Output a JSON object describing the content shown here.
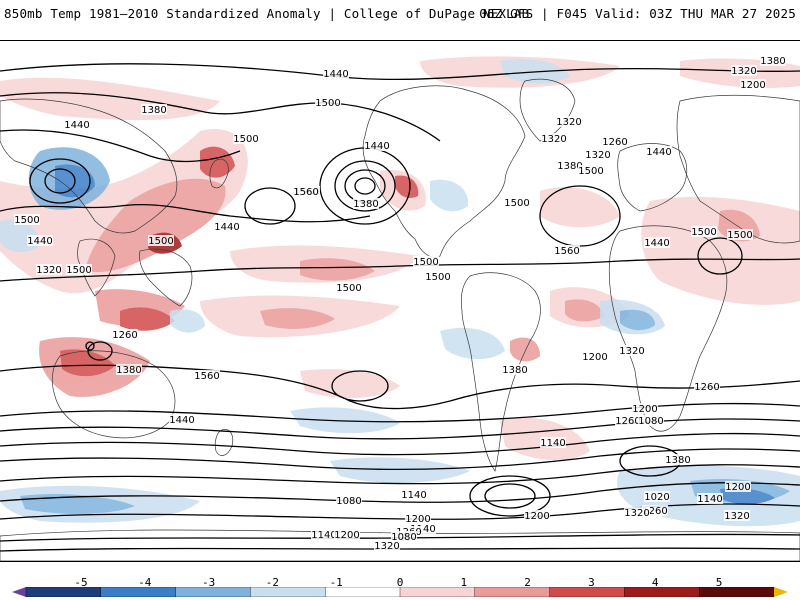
{
  "header": {
    "title_left": "850mb Temp 1981–2010 Standardized Anomaly | College of DuPage NEXLAB",
    "title_right": "06Z GFS | F045 Valid: 03Z THU MAR 27 2025"
  },
  "colorbar": {
    "ticks": [
      "-5",
      "-4",
      "-3",
      "-2",
      "-1",
      "0",
      "1",
      "2",
      "3",
      "4",
      "5"
    ],
    "colors": [
      "#6b3fa0",
      "#1f3d7a",
      "#3a7ec8",
      "#7fb3de",
      "#c9dff0",
      "#ffffff",
      "#f7d4d4",
      "#eb9a9a",
      "#d24b4b",
      "#9e1b1b",
      "#5a0a0a",
      "#f0b400"
    ]
  },
  "map": {
    "contour_labels": [
      "1440",
      "1320",
      "1380",
      "1200",
      "1500",
      "1380",
      "1440",
      "1500",
      "1560",
      "1380",
      "1440",
      "1320",
      "1320",
      "1260",
      "1320",
      "1440",
      "1380",
      "1560",
      "1500",
      "1500",
      "1440",
      "1500",
      "1500",
      "1560",
      "1500",
      "1500",
      "1500",
      "1440",
      "1500",
      "1560",
      "1440",
      "1380",
      "1500",
      "1440",
      "1320",
      "1500",
      "1260",
      "1380",
      "1200",
      "1320",
      "1260",
      "1140",
      "1200",
      "1260",
      "1080",
      "1380",
      "1020",
      "1260",
      "1200",
      "1140",
      "1320",
      "1320",
      "1200",
      "1140",
      "1200",
      "1140",
      "1260",
      "1320",
      "1080",
      "1140",
      "1080",
      "1200"
    ]
  }
}
